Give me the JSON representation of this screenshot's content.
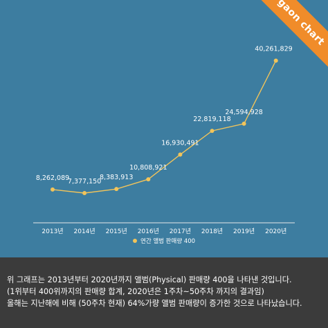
{
  "badge": {
    "label": "gaon chart"
  },
  "colors": {
    "background": "#3d7da0",
    "line": "#f2c45a",
    "point": "#f2c45a",
    "text": "#ffffff",
    "axis": "#e8e8e8",
    "caption_bg": "#3b3b3b",
    "badge": "#f08c2a"
  },
  "chart_data": {
    "type": "line",
    "categories": [
      "2013년",
      "2014년",
      "2015년",
      "2016년",
      "2017년",
      "2018년",
      "2019년",
      "2020년"
    ],
    "series": [
      {
        "name": "연간 앨범 판매량 400",
        "values": [
          8262089,
          7377150,
          8383913,
          10808921,
          16930491,
          22819118,
          24594928,
          40261829
        ],
        "labels": [
          "8,262,089",
          "7,377,150",
          "8,383,913",
          "10,808,921",
          "16,930,491",
          "22,819,118",
          "24,594,928",
          "40,261,829"
        ]
      }
    ],
    "ylim": [
      0,
      45000000
    ],
    "grid": false,
    "legend_position": "bottom-center"
  },
  "caption": {
    "lines": [
      "위 그래프는 2013년부터 2020년까지 앨범(Physical) 판매량 400을 나타낸 것입니다.",
      "(1위부터 400위까지의 판매량 합계, 2020년은 1주차~50주차 까지의 결과임)",
      "올해는 지난해에 비해 (50주차 현재) 64%가량  앨범 판매량이 증가한 것으로 나타났습니다."
    ]
  }
}
